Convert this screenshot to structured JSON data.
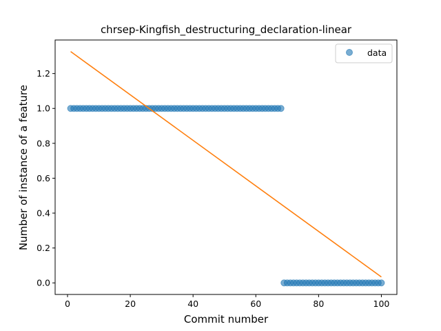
{
  "chart_data": {
    "type": "scatter",
    "title": "chrsep-Kingfish_destructuring_declaration-linear",
    "xlabel": "Commit number",
    "ylabel": "Number of instance of a feature",
    "xlim": [
      -3.95,
      104.95
    ],
    "ylim": [
      -0.0663,
      1.3923
    ],
    "xticks": [
      0,
      20,
      40,
      60,
      80,
      100
    ],
    "yticks": [
      0.0,
      0.2,
      0.4,
      0.6,
      0.8,
      1.0,
      1.2
    ],
    "xtick_labels": [
      "0",
      "20",
      "40",
      "60",
      "80",
      "100"
    ],
    "ytick_labels": [
      "0.0",
      "0.2",
      "0.4",
      "0.6",
      "0.8",
      "1.0",
      "1.2"
    ],
    "grid": false,
    "legend_position": "top-right",
    "series": [
      {
        "name": "data",
        "kind": "scatter",
        "color": "#1f77b4",
        "points": [
          {
            "x": 1,
            "y": 1
          },
          {
            "x": 2,
            "y": 1
          },
          {
            "x": 3,
            "y": 1
          },
          {
            "x": 4,
            "y": 1
          },
          {
            "x": 5,
            "y": 1
          },
          {
            "x": 6,
            "y": 1
          },
          {
            "x": 7,
            "y": 1
          },
          {
            "x": 8,
            "y": 1
          },
          {
            "x": 9,
            "y": 1
          },
          {
            "x": 10,
            "y": 1
          },
          {
            "x": 11,
            "y": 1
          },
          {
            "x": 12,
            "y": 1
          },
          {
            "x": 13,
            "y": 1
          },
          {
            "x": 14,
            "y": 1
          },
          {
            "x": 15,
            "y": 1
          },
          {
            "x": 16,
            "y": 1
          },
          {
            "x": 17,
            "y": 1
          },
          {
            "x": 18,
            "y": 1
          },
          {
            "x": 19,
            "y": 1
          },
          {
            "x": 20,
            "y": 1
          },
          {
            "x": 21,
            "y": 1
          },
          {
            "x": 22,
            "y": 1
          },
          {
            "x": 23,
            "y": 1
          },
          {
            "x": 24,
            "y": 1
          },
          {
            "x": 25,
            "y": 1
          },
          {
            "x": 26,
            "y": 1
          },
          {
            "x": 27,
            "y": 1
          },
          {
            "x": 28,
            "y": 1
          },
          {
            "x": 29,
            "y": 1
          },
          {
            "x": 30,
            "y": 1
          },
          {
            "x": 31,
            "y": 1
          },
          {
            "x": 32,
            "y": 1
          },
          {
            "x": 33,
            "y": 1
          },
          {
            "x": 34,
            "y": 1
          },
          {
            "x": 35,
            "y": 1
          },
          {
            "x": 36,
            "y": 1
          },
          {
            "x": 37,
            "y": 1
          },
          {
            "x": 38,
            "y": 1
          },
          {
            "x": 39,
            "y": 1
          },
          {
            "x": 40,
            "y": 1
          },
          {
            "x": 41,
            "y": 1
          },
          {
            "x": 42,
            "y": 1
          },
          {
            "x": 43,
            "y": 1
          },
          {
            "x": 44,
            "y": 1
          },
          {
            "x": 45,
            "y": 1
          },
          {
            "x": 46,
            "y": 1
          },
          {
            "x": 47,
            "y": 1
          },
          {
            "x": 48,
            "y": 1
          },
          {
            "x": 49,
            "y": 1
          },
          {
            "x": 50,
            "y": 1
          },
          {
            "x": 51,
            "y": 1
          },
          {
            "x": 52,
            "y": 1
          },
          {
            "x": 53,
            "y": 1
          },
          {
            "x": 54,
            "y": 1
          },
          {
            "x": 55,
            "y": 1
          },
          {
            "x": 56,
            "y": 1
          },
          {
            "x": 57,
            "y": 1
          },
          {
            "x": 58,
            "y": 1
          },
          {
            "x": 59,
            "y": 1
          },
          {
            "x": 60,
            "y": 1
          },
          {
            "x": 61,
            "y": 1
          },
          {
            "x": 62,
            "y": 1
          },
          {
            "x": 63,
            "y": 1
          },
          {
            "x": 64,
            "y": 1
          },
          {
            "x": 65,
            "y": 1
          },
          {
            "x": 66,
            "y": 1
          },
          {
            "x": 67,
            "y": 1
          },
          {
            "x": 68,
            "y": 1
          },
          {
            "x": 69,
            "y": 0
          },
          {
            "x": 70,
            "y": 0
          },
          {
            "x": 71,
            "y": 0
          },
          {
            "x": 72,
            "y": 0
          },
          {
            "x": 73,
            "y": 0
          },
          {
            "x": 74,
            "y": 0
          },
          {
            "x": 75,
            "y": 0
          },
          {
            "x": 76,
            "y": 0
          },
          {
            "x": 77,
            "y": 0
          },
          {
            "x": 78,
            "y": 0
          },
          {
            "x": 79,
            "y": 0
          },
          {
            "x": 80,
            "y": 0
          },
          {
            "x": 81,
            "y": 0
          },
          {
            "x": 82,
            "y": 0
          },
          {
            "x": 83,
            "y": 0
          },
          {
            "x": 84,
            "y": 0
          },
          {
            "x": 85,
            "y": 0
          },
          {
            "x": 86,
            "y": 0
          },
          {
            "x": 87,
            "y": 0
          },
          {
            "x": 88,
            "y": 0
          },
          {
            "x": 89,
            "y": 0
          },
          {
            "x": 90,
            "y": 0
          },
          {
            "x": 91,
            "y": 0
          },
          {
            "x": 92,
            "y": 0
          },
          {
            "x": 93,
            "y": 0
          },
          {
            "x": 94,
            "y": 0
          },
          {
            "x": 95,
            "y": 0
          },
          {
            "x": 96,
            "y": 0
          },
          {
            "x": 97,
            "y": 0
          },
          {
            "x": 98,
            "y": 0
          },
          {
            "x": 99,
            "y": 0
          },
          {
            "x": 100,
            "y": 0
          }
        ]
      },
      {
        "kind": "line",
        "color": "#ff7f0e",
        "points": [
          {
            "x": 1,
            "y": 1.326
          },
          {
            "x": 100,
            "y": 0.034
          }
        ]
      }
    ]
  }
}
